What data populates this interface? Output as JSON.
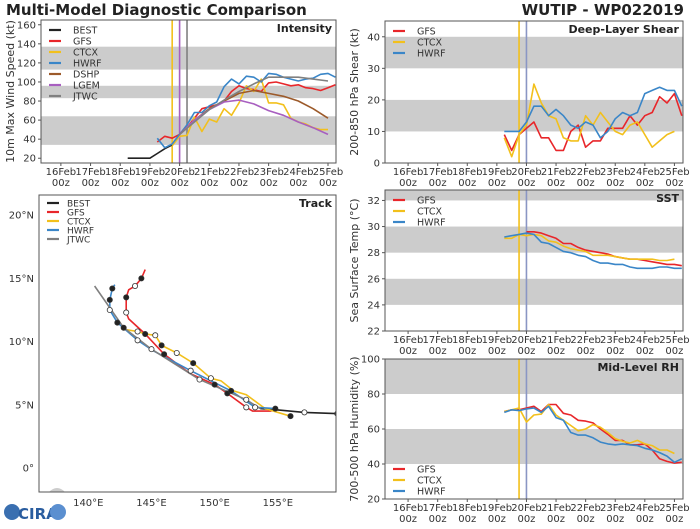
{
  "header": {
    "title": "Multi-Model Diagnostic Comparison",
    "storm": "WUTIP - WP022019"
  },
  "colors": {
    "BEST": "#222222",
    "GFS": "#e8262a",
    "CTCX": "#f2c01c",
    "HWRF": "#3a86c8",
    "DSHP": "#9c5a2a",
    "LGEM": "#a85fc0",
    "JTWC": "#808080",
    "band": "#cccccc",
    "init_line": "#8a96c4"
  },
  "date_ticks": [
    "16Feb",
    "17Feb",
    "18Feb",
    "19Feb",
    "20Feb",
    "21Feb",
    "22Feb",
    "23Feb",
    "24Feb",
    "25Feb"
  ],
  "date_tick_sub": "00z",
  "logo": "CIRA",
  "chart_data": [
    {
      "id": "intensity",
      "type": "line",
      "title": "Intensity",
      "ylabel": "10m Max Wind Speed (kt)",
      "ylim": [
        15,
        165
      ],
      "yticks": [
        20,
        40,
        60,
        80,
        100,
        120,
        140,
        160
      ],
      "bands": [
        [
          34,
          64
        ],
        [
          83,
          96
        ],
        [
          113,
          137
        ]
      ],
      "legend": "top-left",
      "vlines": [
        {
          "time": "19Feb 18z",
          "color": "#f2c01c"
        },
        {
          "time": "20Feb 00z",
          "color": "#a85fc0"
        },
        {
          "time": "20Feb 06z",
          "color": "#808080"
        }
      ],
      "series": [
        {
          "name": "BEST",
          "start": "18Feb 06z",
          "interval_hours": 6,
          "values": [
            20,
            20,
            20,
            20,
            25,
            30,
            34
          ]
        },
        {
          "name": "GFS",
          "start": "19Feb 06z",
          "interval_hours": 6,
          "values": [
            37,
            43,
            41,
            45,
            52,
            62,
            72,
            74,
            76,
            80,
            90,
            96,
            93,
            92,
            90,
            99,
            100,
            98,
            96,
            97,
            94,
            93,
            91,
            94,
            97
          ]
        },
        {
          "name": "CTCX",
          "start": "19Feb 18z",
          "interval_hours": 6,
          "values": [
            33,
            43,
            44,
            63,
            48,
            61,
            58,
            72,
            65,
            78,
            96,
            90,
            103,
            78,
            78,
            76,
            62,
            58,
            56,
            52,
            50,
            50
          ]
        },
        {
          "name": "HWRF",
          "start": "19Feb 06z",
          "interval_hours": 6,
          "values": [
            41,
            31,
            35,
            45,
            55,
            68,
            68,
            75,
            79,
            95,
            103,
            98,
            106,
            105,
            100,
            109,
            108,
            105,
            103,
            101,
            103,
            104,
            108,
            109,
            105
          ]
        },
        {
          "name": "DSHP",
          "start": "20Feb 00z",
          "interval_hours": 12,
          "values": [
            45,
            60,
            72,
            80,
            88,
            91,
            88,
            85,
            80,
            72,
            62
          ]
        },
        {
          "name": "LGEM",
          "start": "20Feb 00z",
          "interval_hours": 12,
          "values": [
            45,
            60,
            71,
            79,
            81,
            77,
            70,
            65,
            58,
            52,
            45
          ]
        },
        {
          "name": "JTWC",
          "start": "20Feb 00z",
          "interval_hours": 12,
          "values": [
            45,
            58,
            71,
            81,
            90,
            98,
            105,
            105,
            105,
            103,
            101
          ]
        }
      ]
    },
    {
      "id": "shear",
      "type": "line",
      "title": "Deep-Layer Shear",
      "ylabel": "200-850 hPa Shear (kt)",
      "ylim": [
        0,
        45
      ],
      "yticks": [
        0,
        10,
        20,
        30,
        40
      ],
      "bands": [
        [
          10,
          20
        ],
        [
          30,
          40
        ]
      ],
      "legend": "top-left",
      "vlines": [
        {
          "time": "19Feb 18z",
          "color": "#f2c01c"
        },
        {
          "time": "20Feb 00z",
          "color": "#8a96c4"
        }
      ],
      "series": [
        {
          "name": "GFS",
          "start": "19Feb 06z",
          "interval_hours": 6,
          "values": [
            9,
            4,
            9,
            11,
            13,
            8,
            8,
            4,
            4,
            10,
            12,
            5,
            7,
            7,
            11,
            11,
            11,
            15,
            12,
            15,
            16,
            21,
            19,
            22,
            15
          ]
        },
        {
          "name": "CTCX",
          "start": "19Feb 06z",
          "interval_hours": 6,
          "values": [
            8,
            2,
            9,
            12,
            25,
            19,
            15,
            14,
            8,
            7,
            7,
            15,
            12,
            16,
            13,
            10,
            9,
            12,
            13,
            9,
            5,
            7,
            9,
            10
          ]
        },
        {
          "name": "HWRF",
          "start": "19Feb 06z",
          "interval_hours": 6,
          "values": [
            10,
            10,
            10,
            13,
            18,
            18,
            15,
            17,
            15,
            12,
            11,
            13,
            12,
            8,
            10,
            14,
            16,
            15,
            16,
            22,
            23,
            24,
            23,
            23,
            18
          ]
        }
      ]
    },
    {
      "id": "sst",
      "type": "line",
      "title": "SST",
      "ylabel": "Sea Surface Temp (°C)",
      "ylim": [
        22,
        32.8
      ],
      "yticks": [
        22,
        24,
        26,
        28,
        30,
        32
      ],
      "bands": [
        [
          24,
          26
        ],
        [
          28,
          30
        ],
        [
          32,
          33
        ]
      ],
      "legend": "top-left",
      "vlines": [
        {
          "time": "19Feb 18z",
          "color": "#f2c01c"
        },
        {
          "time": "20Feb 00z",
          "color": "#8a96c4"
        }
      ],
      "series": [
        {
          "name": "GFS",
          "start": "20Feb 00z",
          "interval_hours": 6,
          "values": [
            29.6,
            29.6,
            29.5,
            29.3,
            29.1,
            28.7,
            28.7,
            28.4,
            28.2,
            28.1,
            28.0,
            27.9,
            27.7,
            27.6,
            27.5,
            27.5,
            27.4,
            27.3,
            27.2,
            27.1,
            27.1,
            27.0
          ]
        },
        {
          "name": "CTCX",
          "start": "19Feb 06z",
          "interval_hours": 6,
          "values": [
            29.1,
            29.1,
            29.4,
            29.3,
            29.4,
            29.3,
            28.9,
            28.8,
            28.5,
            28.3,
            28.2,
            28.1,
            27.8,
            27.8,
            27.8,
            27.7,
            27.6,
            27.5,
            27.5,
            27.5,
            27.5,
            27.4,
            27.4,
            27.5
          ]
        },
        {
          "name": "HWRF",
          "start": "19Feb 06z",
          "interval_hours": 6,
          "values": [
            29.2,
            29.3,
            29.4,
            29.5,
            29.4,
            28.8,
            28.7,
            28.4,
            28.1,
            28.0,
            27.8,
            27.7,
            27.4,
            27.2,
            27.2,
            27.1,
            27.1,
            26.9,
            26.8,
            26.8,
            26.8,
            26.9,
            26.9,
            26.8,
            26.8
          ]
        }
      ]
    },
    {
      "id": "rh",
      "type": "line",
      "title": "Mid-Level RH",
      "ylabel": "700-500 hPa Humidity (%)",
      "ylim": [
        20,
        100
      ],
      "yticks": [
        20,
        40,
        60,
        80,
        100
      ],
      "bands": [
        [
          40,
          60
        ],
        [
          80,
          100
        ]
      ],
      "legend": "bottom-left",
      "vlines": [
        {
          "time": "19Feb 18z",
          "color": "#f2c01c"
        },
        {
          "time": "20Feb 00z",
          "color": "#8a96c4"
        }
      ],
      "series": [
        {
          "name": "GFS",
          "start": "19Feb 06z",
          "interval_hours": 6,
          "values": [
            70,
            71,
            71,
            72,
            73,
            70,
            74,
            74,
            69,
            68,
            65,
            64.5,
            63.5,
            60,
            57,
            53.5,
            53.5,
            51,
            51,
            51.5,
            48,
            43,
            41.5,
            40.5,
            41
          ]
        },
        {
          "name": "CTCX",
          "start": "19Feb 06z",
          "interval_hours": 6,
          "values": [
            70,
            71,
            72,
            64,
            68,
            68.5,
            74,
            68,
            65,
            62,
            59,
            60,
            62.5,
            61,
            58,
            54.5,
            53,
            52,
            53.5,
            51.5,
            50.5,
            48,
            48,
            46
          ]
        },
        {
          "name": "HWRF",
          "start": "19Feb 06z",
          "interval_hours": 6,
          "values": [
            69.5,
            71,
            70.5,
            71.5,
            72,
            69.5,
            73,
            66.5,
            65,
            58,
            56.5,
            56.5,
            55,
            52.5,
            51.5,
            51,
            51.5,
            51,
            50.5,
            49,
            48,
            46.5,
            44.5,
            41,
            43
          ]
        }
      ]
    },
    {
      "id": "track",
      "type": "map-track",
      "title": "Track",
      "xlim": [
        136.1,
        159.6
      ],
      "ylim": [
        -1.9,
        21.6
      ],
      "xticks": [
        {
          "v": 140,
          "label": "140°E"
        },
        {
          "v": 145,
          "label": "145°E"
        },
        {
          "v": 150,
          "label": "150°E"
        },
        {
          "v": 155,
          "label": "155°E"
        }
      ],
      "yticks": [
        {
          "v": 0,
          "label": "0°"
        },
        {
          "v": 5,
          "label": "5°N"
        },
        {
          "v": 10,
          "label": "10°N"
        },
        {
          "v": 15,
          "label": "15°N"
        },
        {
          "v": 20,
          "label": "20°N"
        }
      ],
      "legend": "top-left",
      "series": [
        {
          "name": "BEST",
          "points": [
            [
              159.7,
              4.3,
              "f"
            ],
            [
              157.1,
              4.4,
              "o"
            ],
            [
              155,
              4.6,
              ""
            ],
            [
              153.6,
              4.7,
              ""
            ]
          ]
        },
        {
          "name": "GFS",
          "points": [
            [
              154.5,
              4.5,
              ""
            ],
            [
              153,
              4.5,
              ""
            ],
            [
              152.5,
              4.8,
              "o"
            ],
            [
              151,
              5.9,
              "f"
            ],
            [
              150,
              6.6,
              "f"
            ],
            [
              148,
              7.5,
              ""
            ],
            [
              146,
              9,
              "f"
            ],
            [
              144.5,
              10.6,
              "f"
            ],
            [
              143.2,
              11.8,
              ""
            ],
            [
              143,
              12.3,
              "o"
            ],
            [
              143,
              13.5,
              "f"
            ],
            [
              143.2,
              14.1,
              ""
            ],
            [
              143.7,
              14.4,
              "o"
            ],
            [
              144.2,
              15,
              "f"
            ],
            [
              144.5,
              15.7,
              ""
            ]
          ]
        },
        {
          "name": "CTCX",
          "points": [
            [
              156,
              4.1,
              "f"
            ],
            [
              154,
              4.7,
              ""
            ],
            [
              152.5,
              5.8,
              ""
            ],
            [
              151.5,
              6.1,
              ""
            ],
            [
              150.5,
              6.9,
              ""
            ],
            [
              149.7,
              7.1,
              "o"
            ],
            [
              148.3,
              8.3,
              "f"
            ],
            [
              147,
              9.1,
              "o"
            ],
            [
              145.8,
              9.7,
              "f"
            ],
            [
              145.3,
              10.5,
              "o"
            ],
            [
              144.5,
              10.6,
              ""
            ],
            [
              143.9,
              10.8,
              "o"
            ],
            [
              142.7,
              11,
              ""
            ]
          ]
        },
        {
          "name": "HWRF",
          "points": [
            [
              154.8,
              4.7,
              "f"
            ],
            [
              153.2,
              4.8,
              "o"
            ],
            [
              151.3,
              6.1,
              "f"
            ],
            [
              148.1,
              7.7,
              "o"
            ],
            [
              145.1,
              9.3,
              ""
            ],
            [
              143.9,
              10.1,
              "o"
            ],
            [
              142.3,
              11.5,
              "f"
            ],
            [
              141.7,
              12.5,
              "o"
            ],
            [
              141.7,
              13.3,
              "f"
            ],
            [
              141.9,
              14.2,
              "f"
            ],
            [
              142.1,
              14.5,
              ""
            ]
          ]
        },
        {
          "name": "JTWC",
          "points": [
            [
              153.6,
              4.7,
              ""
            ],
            [
              152.5,
              5.4,
              "o"
            ],
            [
              148.8,
              7,
              "o"
            ],
            [
              145,
              9.4,
              "o"
            ],
            [
              142.8,
              11.1,
              "f"
            ],
            [
              140.5,
              14.4,
              ""
            ]
          ]
        }
      ]
    }
  ]
}
